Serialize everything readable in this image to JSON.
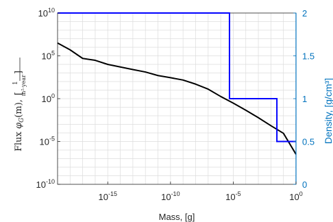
{
  "chart_data": {
    "type": "line",
    "xlabel": "Mass, [g]",
    "ylabel": "Flux φ_G(m), [1/(m²·year)]",
    "ylabel_parts": {
      "flux_word": "Flux ",
      "phi": "φ",
      "phi_sub": "G",
      "arg": "(m),",
      "bracket_open": "[",
      "frac_num": "1",
      "frac_den": "m²·year",
      "bracket_close": "]"
    },
    "ylabel_right": "Density, [g/cm³]",
    "x_scale": "log",
    "y_scale": "log",
    "xlim": [
      1e-19,
      1
    ],
    "ylim": [
      1e-10,
      10000000000.0
    ],
    "ylim_right": [
      0,
      2
    ],
    "x_ticks": [
      {
        "value": 1e-15,
        "base": "10",
        "exp": "-15"
      },
      {
        "value": 1e-10,
        "base": "10",
        "exp": "-10"
      },
      {
        "value": 1e-05,
        "base": "10",
        "exp": "-5"
      },
      {
        "value": 1,
        "base": "10",
        "exp": "0"
      }
    ],
    "y_ticks": [
      {
        "value": 10000000000.0,
        "base": "10",
        "exp": "10"
      },
      {
        "value": 100000.0,
        "base": "10",
        "exp": "5"
      },
      {
        "value": 1,
        "base": "10",
        "exp": "0"
      },
      {
        "value": 1e-05,
        "base": "10",
        "exp": "-5"
      },
      {
        "value": 1e-10,
        "base": "10",
        "exp": "-10"
      }
    ],
    "y_ticks_right": [
      "0",
      "0.5",
      "1",
      "1.5",
      "2"
    ],
    "grid": true,
    "colors": {
      "flux": "#000000",
      "density": "#0000FF",
      "right_axis": "#0072BD",
      "grid": "#dcdcdc",
      "axis": "#262626"
    },
    "series": [
      {
        "axis": "left",
        "points": [
          [
            1e-19,
            3200000.0
          ],
          [
            1e-18,
            500000.0
          ],
          [
            1e-17,
            50000.0
          ],
          [
            1e-16,
            30000.0
          ],
          [
            1e-15,
            10000.0
          ],
          [
            1e-14,
            5000.0
          ],
          [
            1e-13,
            2500.0
          ],
          [
            1e-12,
            1300.0
          ],
          [
            1e-11,
            500.0
          ],
          [
            1e-10,
            280.0
          ],
          [
            1e-09,
            150.0
          ],
          [
            1e-08,
            50
          ],
          [
            1e-07,
            13
          ],
          [
            1e-06,
            1.8
          ],
          [
            1e-05,
            0.3
          ],
          [
            0.0001,
            0.045
          ],
          [
            0.001,
            0.006
          ],
          [
            0.01,
            0.0007
          ],
          [
            0.1,
            9e-05
          ],
          [
            1,
            3.2e-07
          ]
        ]
      },
      {
        "axis": "right",
        "points": [
          [
            1e-19,
            2
          ],
          [
            5e-06,
            2
          ],
          [
            5e-06,
            1
          ],
          [
            0.03,
            1
          ],
          [
            0.03,
            0.5
          ],
          [
            1,
            0.5
          ]
        ]
      }
    ]
  }
}
